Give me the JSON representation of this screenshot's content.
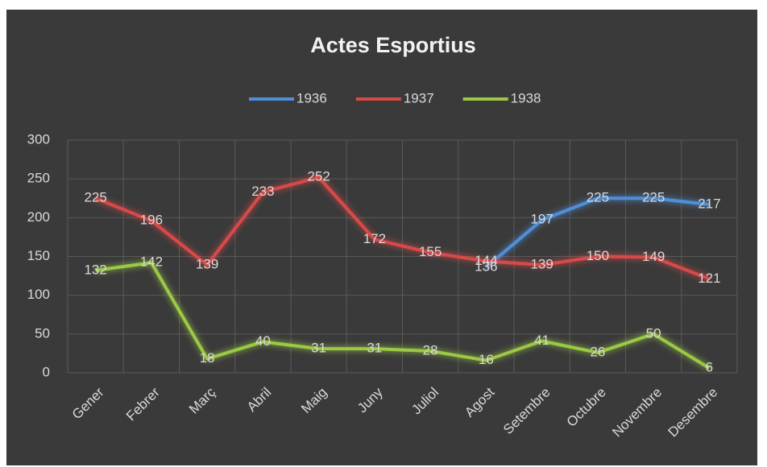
{
  "chart_data": {
    "type": "line",
    "title": "Actes Esportius",
    "categories": [
      "Gener",
      "Febrer",
      "Març",
      "Abril",
      "Maig",
      "Juny",
      "Juliol",
      "Agost",
      "Setembre",
      "Octubre",
      "Novembre",
      "Desembre"
    ],
    "series": [
      {
        "name": "1936",
        "color": "#4f8fd8",
        "values": [
          null,
          null,
          null,
          null,
          null,
          null,
          null,
          136,
          197,
          225,
          225,
          217
        ]
      },
      {
        "name": "1937",
        "color": "#d84a4a",
        "values": [
          225,
          196,
          139,
          233,
          252,
          172,
          155,
          144,
          139,
          150,
          149,
          121
        ]
      },
      {
        "name": "1938",
        "color": "#9bc845",
        "values": [
          132,
          142,
          18,
          40,
          31,
          31,
          28,
          16,
          41,
          26,
          50,
          6
        ]
      }
    ],
    "ylim": [
      0,
      300
    ],
    "yticks": [
      0,
      50,
      100,
      150,
      200,
      250,
      300
    ],
    "grid": true,
    "legend": "top"
  }
}
